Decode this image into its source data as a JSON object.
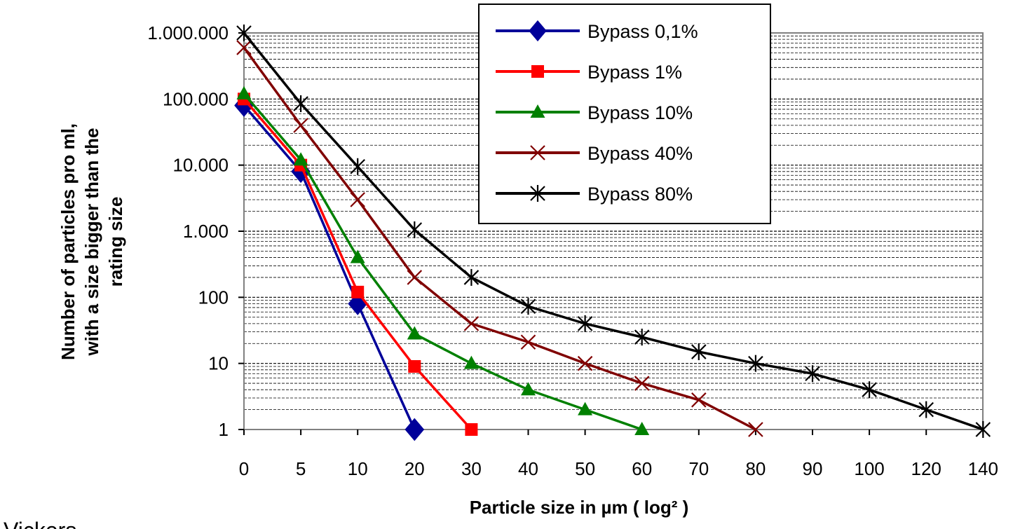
{
  "chart_data": {
    "type": "line",
    "title": "",
    "xlabel": "Particle size in µm ( log² )",
    "ylabel_lines": [
      "Number of particles pro ml,",
      "with a size bigger than the",
      "rating size"
    ],
    "y_scale": "log",
    "ylim": [
      1,
      1000000
    ],
    "grid": "horizontal dashed minor gridlines",
    "legend_position": "top-right",
    "x_categories": [
      "0",
      "5",
      "10",
      "20",
      "30",
      "40",
      "50",
      "60",
      "70",
      "80",
      "90",
      "100",
      "120",
      "140"
    ],
    "y_ticks": [
      {
        "value": 1,
        "label": "1"
      },
      {
        "value": 10,
        "label": "10"
      },
      {
        "value": 100,
        "label": "100"
      },
      {
        "value": 1000,
        "label": "1.000"
      },
      {
        "value": 10000,
        "label": "10.000"
      },
      {
        "value": 100000,
        "label": "100.000"
      },
      {
        "value": 1000000,
        "label": "1.000.000"
      }
    ],
    "series": [
      {
        "name": "Bypass 0,1%",
        "color": "#000099",
        "marker": "diamond",
        "values": [
          80000,
          8000,
          80,
          1,
          null,
          null,
          null,
          null,
          null,
          null,
          null,
          null,
          null,
          null
        ]
      },
      {
        "name": "Bypass 1%",
        "color": "#ff0000",
        "marker": "square",
        "values": [
          100000,
          10000,
          120,
          9,
          1,
          null,
          null,
          null,
          null,
          null,
          null,
          null,
          null,
          null
        ]
      },
      {
        "name": "Bypass 10%",
        "color": "#008000",
        "marker": "triangle",
        "values": [
          120000,
          12000,
          400,
          28,
          10,
          4,
          2,
          1,
          null,
          null,
          null,
          null,
          null,
          null
        ]
      },
      {
        "name": "Bypass 40%",
        "color": "#800000",
        "marker": "x",
        "values": [
          600000,
          40000,
          3000,
          200,
          40,
          21,
          10,
          5,
          2.8,
          1,
          null,
          null,
          null,
          null
        ]
      },
      {
        "name": "Bypass 80%",
        "color": "#000000",
        "marker": "star",
        "values": [
          1000000,
          85000,
          9500,
          1050,
          200,
          73,
          40,
          25,
          15,
          10,
          7,
          4,
          2,
          1
        ]
      }
    ]
  },
  "footer_text": "Vickers"
}
